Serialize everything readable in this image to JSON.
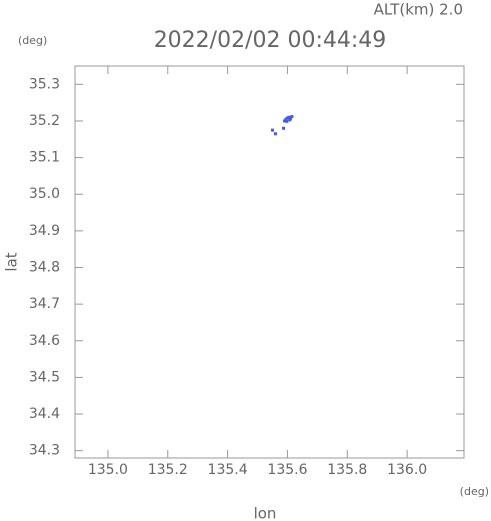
{
  "chart_data": {
    "type": "scatter",
    "header": "ALT(km) 2.0",
    "title": "2022/02/02 00:44:49",
    "y_unit": "(deg)",
    "x_unit": "(deg)",
    "y_label": "lat",
    "x_label": "lon",
    "xlim": [
      134.89,
      136.19
    ],
    "ylim": [
      34.28,
      35.35
    ],
    "xticks": [
      {
        "value": 135,
        "label": "135.0"
      },
      135.2,
      135.4,
      135.6,
      135.8,
      {
        "value": 136,
        "label": "136.0"
      }
    ],
    "yticks": [
      35.3,
      35.2,
      35.1,
      {
        "value": 35,
        "label": "35.0"
      },
      34.9,
      34.8,
      34.7,
      34.6,
      34.5,
      34.4,
      34.3
    ],
    "series": [
      {
        "color": "#4a5ae0",
        "x": [
          135.59,
          135.595,
          135.6,
          135.605,
          135.61,
          135.615,
          135.598,
          135.608,
          135.587,
          135.55,
          135.56
        ],
        "y": [
          35.2,
          35.205,
          35.208,
          35.21,
          35.207,
          35.212,
          35.199,
          35.203,
          35.18,
          35.175,
          35.165
        ]
      }
    ]
  }
}
